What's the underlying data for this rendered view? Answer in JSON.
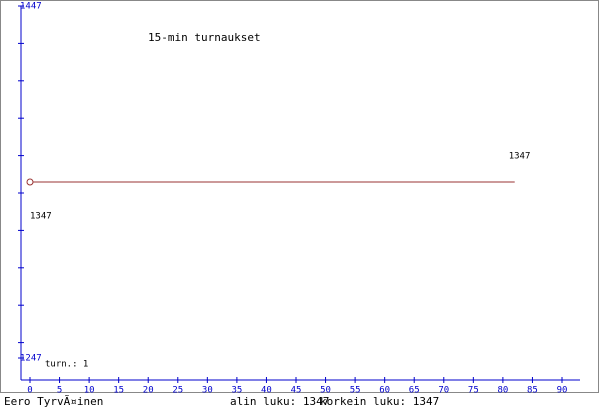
{
  "chart_data": {
    "type": "line",
    "title": "15-min turnaukset",
    "annotation": "turn.: 1",
    "x": [
      0,
      82
    ],
    "xlim": [
      0,
      90
    ],
    "xticks": [
      0,
      5,
      10,
      15,
      20,
      25,
      30,
      35,
      40,
      45,
      50,
      55,
      60,
      65,
      70,
      75,
      80,
      85,
      90
    ],
    "ylim": [
      1247,
      1447
    ],
    "yticks": [
      1247,
      1447
    ],
    "axis_color": "#0000cc",
    "series": [
      {
        "values": [
          1347,
          1347
        ],
        "color": "#993333"
      }
    ]
  },
  "footer": {
    "author": "Eero TyrvÃ¤inen",
    "low": "alin luku: 1347",
    "high": "korkein luku: 1347"
  }
}
